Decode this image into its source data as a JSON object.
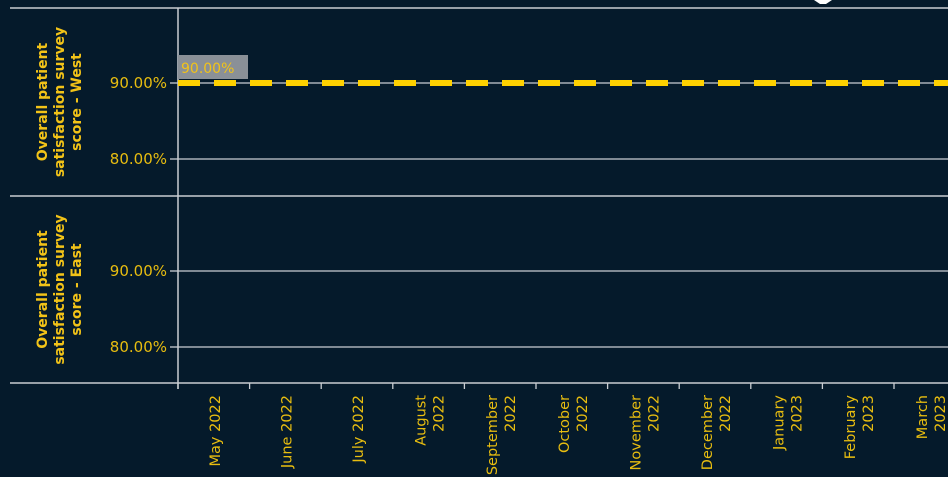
{
  "chart_data": {
    "type": "line",
    "panels": [
      {
        "ylabel_lines": [
          "Overall patient",
          "satisfaction survey",
          "score - West"
        ],
        "yticks": [
          "90.00%",
          "80.00%"
        ],
        "ytick_values": [
          90,
          80
        ],
        "ylim": [
          75,
          100
        ],
        "series": [
          {
            "type": "dashed-line",
            "color": "#ffd100",
            "x": [
              "May 2022",
              "March 2023"
            ],
            "values": [
              90,
              90
            ],
            "data_label": "90.00%"
          }
        ]
      },
      {
        "ylabel_lines": [
          "Overall patient",
          "satisfaction survey",
          "score - East"
        ],
        "yticks": [
          "90.00%",
          "80.00%"
        ],
        "ytick_values": [
          90,
          80
        ],
        "ylim": [
          75,
          100
        ],
        "series": []
      }
    ],
    "x_categories": [
      {
        "l1": "May 2022",
        "l2": ""
      },
      {
        "l1": "June 2022",
        "l2": ""
      },
      {
        "l1": "July 2022",
        "l2": ""
      },
      {
        "l1": "August",
        "l2": "2022"
      },
      {
        "l1": "September",
        "l2": "2022"
      },
      {
        "l1": "October",
        "l2": "2022"
      },
      {
        "l1": "November",
        "l2": "2022"
      },
      {
        "l1": "December",
        "l2": "2022"
      },
      {
        "l1": "January",
        "l2": "2023"
      },
      {
        "l1": "February",
        "l2": "2023"
      },
      {
        "l1": "March",
        "l2": "2023"
      }
    ],
    "grid": true,
    "colors": {
      "background": "#051a2b",
      "text": "#e8bd10",
      "grid": "#c9cdd2",
      "line": "#ffd100",
      "label_bg": "#8a9097"
    }
  }
}
